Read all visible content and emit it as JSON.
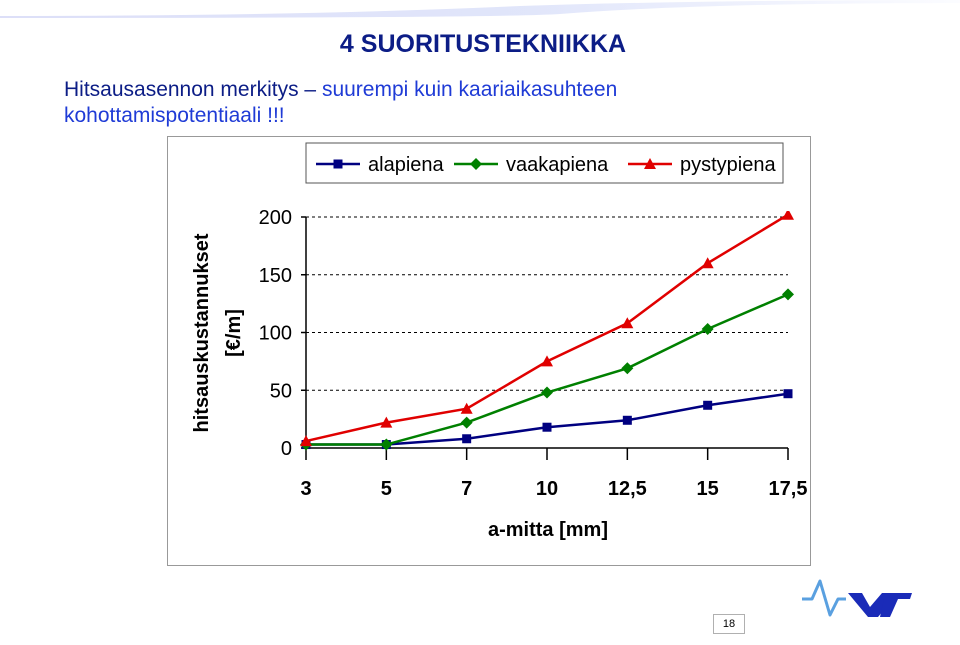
{
  "slide": {
    "title": "4 SUORITUSTEKNIIKKA",
    "subtitle_line1": "Hitsausasennon merkitys – ",
    "subtitle_accent1": "suurempi kuin kaariaikasuhteen",
    "subtitle_accent2": "kohottamispotentiaali !!!",
    "page_number": "18",
    "logo_text": "VTT"
  },
  "colors": {
    "title": "#0c1d86",
    "accent": "#1f3bd6",
    "alapiena": "#000080",
    "vaakapiena": "#008000",
    "pystypiena": "#e00000"
  },
  "chart_data": {
    "type": "line",
    "categories": [
      "3",
      "5",
      "7",
      "10",
      "12,5",
      "15",
      "17,5"
    ],
    "series": [
      {
        "name": "alapiena",
        "marker": "square",
        "values": [
          3,
          3,
          8,
          18,
          24,
          37,
          47
        ]
      },
      {
        "name": "vaakapiena",
        "marker": "diamond",
        "values": [
          3,
          3,
          22,
          48,
          69,
          103,
          133
        ]
      },
      {
        "name": "pystypiena",
        "marker": "triangle",
        "values": [
          6,
          22,
          34,
          75,
          108,
          160,
          202
        ]
      }
    ],
    "xlabel": "a-mitta [mm]",
    "ylabel_line1": "hitsauskustannukset",
    "ylabel_line2": "[€/m]",
    "yticks": [
      "0",
      "50",
      "100",
      "150",
      "200"
    ],
    "ylim": [
      0,
      200
    ],
    "grid": true,
    "legend_position": "top"
  }
}
